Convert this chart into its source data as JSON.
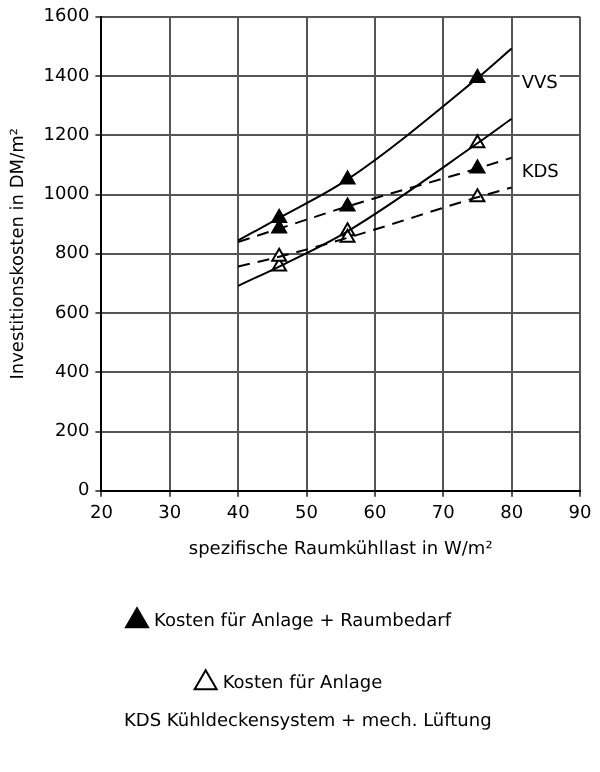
{
  "chart_data": {
    "type": "line",
    "xlabel": "spezifische Raumkühllast in W/m²",
    "ylabel": "Investitionskosten in DM/m²",
    "xlim": [
      20,
      90
    ],
    "xticks": [
      20,
      30,
      40,
      50,
      60,
      70,
      80,
      90
    ],
    "ylim": [
      0,
      1600
    ],
    "yticks": [
      0,
      200,
      400,
      600,
      800,
      1000,
      1200,
      1400,
      1600
    ],
    "grid": true,
    "legend": "bottom",
    "marker": "triangle",
    "series": [
      {
        "color": "#000000",
        "x": [
          40,
          46,
          56,
          75,
          80
        ],
        "values": [
          845,
          921,
          1051,
          1393,
          1493
        ],
        "line_style": "solid",
        "marker": "none"
      },
      {
        "color": "#000000",
        "x": [
          40,
          46,
          56,
          75,
          80
        ],
        "values": [
          692,
          757,
          876,
          1173,
          1256
        ],
        "line_style": "solid",
        "marker": "none"
      },
      {
        "color": "#000000",
        "x": [
          40,
          46,
          56,
          75,
          80
        ],
        "values": [
          840,
          885,
          960,
          1088,
          1124
        ],
        "line_style": "dashed",
        "marker": "none"
      },
      {
        "color": "#000000",
        "x": [
          40,
          46,
          56,
          75,
          80
        ],
        "values": [
          757,
          790,
          854,
          991,
          1024
        ],
        "line_style": "dashed",
        "marker": "none"
      },
      {
        "type": "scatter",
        "name": "Kosten für Anlage + Raumbedarf",
        "color": "#000000",
        "x": [
          46,
          56,
          75,
          46,
          56,
          75
        ],
        "values": [
          921,
          1051,
          1393,
          885,
          960,
          1088
        ]
      },
      {
        "type": "scatter",
        "name": "Kosten für Anlage",
        "color": "#ffffff",
        "x": [
          46,
          56,
          75,
          46,
          56,
          75
        ],
        "values": [
          757,
          876,
          1173,
          790,
          854,
          991
        ]
      }
    ],
    "annotations": [
      "VVS",
      "KDS",
      "KDS   Kühldeckensystem + mech. Lüftung"
    ]
  }
}
